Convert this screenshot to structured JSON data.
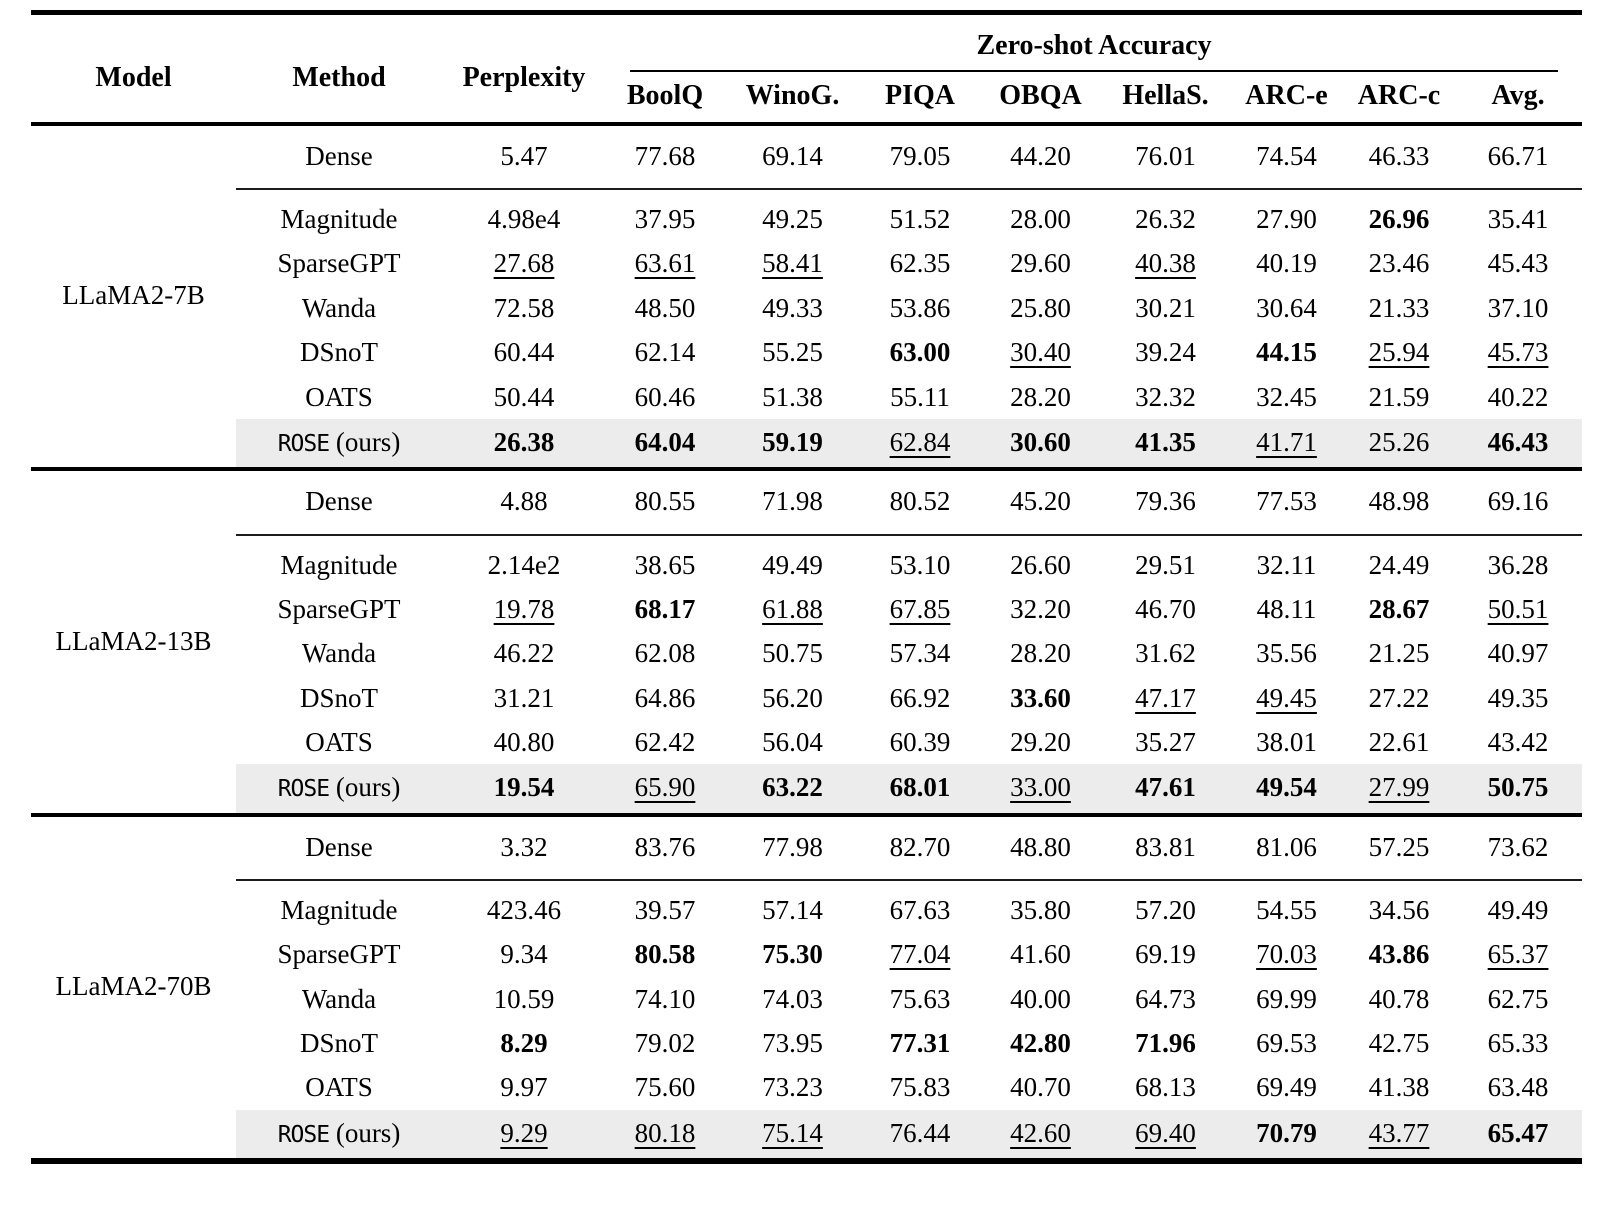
{
  "colors": {
    "highlight_row": "#ececec",
    "text": "#000000",
    "background": "#ffffff"
  },
  "table": {
    "header": {
      "model": "Model",
      "method": "Method",
      "perplexity": "Perplexity",
      "group": "Zero-shot Accuracy",
      "subcolumns": [
        "BoolQ",
        "WinoG.",
        "PIQA",
        "OBQA",
        "HellaS.",
        "ARC-e",
        "ARC-c",
        "Avg."
      ]
    },
    "blocks": [
      {
        "model": "LLaMA2-7B",
        "rows": [
          {
            "method": "Dense",
            "cells": [
              [
                "5.47",
                ""
              ],
              [
                "77.68",
                ""
              ],
              [
                "69.14",
                ""
              ],
              [
                "79.05",
                ""
              ],
              [
                "44.20",
                ""
              ],
              [
                "76.01",
                ""
              ],
              [
                "74.54",
                ""
              ],
              [
                "46.33",
                ""
              ],
              [
                "66.71",
                ""
              ]
            ]
          },
          {
            "method": "Magnitude",
            "cells": [
              [
                "4.98e4",
                ""
              ],
              [
                "37.95",
                ""
              ],
              [
                "49.25",
                ""
              ],
              [
                "51.52",
                ""
              ],
              [
                "28.00",
                ""
              ],
              [
                "26.32",
                ""
              ],
              [
                "27.90",
                ""
              ],
              [
                "26.96",
                "b"
              ],
              [
                "35.41",
                ""
              ]
            ]
          },
          {
            "method": "SparseGPT",
            "cells": [
              [
                "27.68",
                "u"
              ],
              [
                "63.61",
                "u"
              ],
              [
                "58.41",
                "u"
              ],
              [
                "62.35",
                ""
              ],
              [
                "29.60",
                ""
              ],
              [
                "40.38",
                "u"
              ],
              [
                "40.19",
                ""
              ],
              [
                "23.46",
                ""
              ],
              [
                "45.43",
                ""
              ]
            ]
          },
          {
            "method": "Wanda",
            "cells": [
              [
                "72.58",
                ""
              ],
              [
                "48.50",
                ""
              ],
              [
                "49.33",
                ""
              ],
              [
                "53.86",
                ""
              ],
              [
                "25.80",
                ""
              ],
              [
                "30.21",
                ""
              ],
              [
                "30.64",
                ""
              ],
              [
                "21.33",
                ""
              ],
              [
                "37.10",
                ""
              ]
            ]
          },
          {
            "method": "DSnoT",
            "cells": [
              [
                "60.44",
                ""
              ],
              [
                "62.14",
                ""
              ],
              [
                "55.25",
                ""
              ],
              [
                "63.00",
                "b"
              ],
              [
                "30.40",
                "u"
              ],
              [
                "39.24",
                ""
              ],
              [
                "44.15",
                "b"
              ],
              [
                "25.94",
                "u"
              ],
              [
                "45.73",
                "u"
              ]
            ]
          },
          {
            "method": "OATS",
            "cells": [
              [
                "50.44",
                ""
              ],
              [
                "60.46",
                ""
              ],
              [
                "51.38",
                ""
              ],
              [
                "55.11",
                ""
              ],
              [
                "28.20",
                ""
              ],
              [
                "32.32",
                ""
              ],
              [
                "32.45",
                ""
              ],
              [
                "21.59",
                ""
              ],
              [
                "40.22",
                ""
              ]
            ]
          },
          {
            "method": "ROSE",
            "method_suffix": "(ours)",
            "method_mono": true,
            "highlight": true,
            "cells": [
              [
                "26.38",
                "b"
              ],
              [
                "64.04",
                "b"
              ],
              [
                "59.19",
                "b"
              ],
              [
                "62.84",
                "u"
              ],
              [
                "30.60",
                "b"
              ],
              [
                "41.35",
                "b"
              ],
              [
                "41.71",
                "u"
              ],
              [
                "25.26",
                ""
              ],
              [
                "46.43",
                "b"
              ]
            ]
          }
        ]
      },
      {
        "model": "LLaMA2-13B",
        "rows": [
          {
            "method": "Dense",
            "cells": [
              [
                "4.88",
                ""
              ],
              [
                "80.55",
                ""
              ],
              [
                "71.98",
                ""
              ],
              [
                "80.52",
                ""
              ],
              [
                "45.20",
                ""
              ],
              [
                "79.36",
                ""
              ],
              [
                "77.53",
                ""
              ],
              [
                "48.98",
                ""
              ],
              [
                "69.16",
                ""
              ]
            ]
          },
          {
            "method": "Magnitude",
            "cells": [
              [
                "2.14e2",
                ""
              ],
              [
                "38.65",
                ""
              ],
              [
                "49.49",
                ""
              ],
              [
                "53.10",
                ""
              ],
              [
                "26.60",
                ""
              ],
              [
                "29.51",
                ""
              ],
              [
                "32.11",
                ""
              ],
              [
                "24.49",
                ""
              ],
              [
                "36.28",
                ""
              ]
            ]
          },
          {
            "method": "SparseGPT",
            "cells": [
              [
                "19.78",
                "u"
              ],
              [
                "68.17",
                "b"
              ],
              [
                "61.88",
                "u"
              ],
              [
                "67.85",
                "u"
              ],
              [
                "32.20",
                ""
              ],
              [
                "46.70",
                ""
              ],
              [
                "48.11",
                ""
              ],
              [
                "28.67",
                "b"
              ],
              [
                "50.51",
                "u"
              ]
            ]
          },
          {
            "method": "Wanda",
            "cells": [
              [
                "46.22",
                ""
              ],
              [
                "62.08",
                ""
              ],
              [
                "50.75",
                ""
              ],
              [
                "57.34",
                ""
              ],
              [
                "28.20",
                ""
              ],
              [
                "31.62",
                ""
              ],
              [
                "35.56",
                ""
              ],
              [
                "21.25",
                ""
              ],
              [
                "40.97",
                ""
              ]
            ]
          },
          {
            "method": "DSnoT",
            "cells": [
              [
                "31.21",
                ""
              ],
              [
                "64.86",
                ""
              ],
              [
                "56.20",
                ""
              ],
              [
                "66.92",
                ""
              ],
              [
                "33.60",
                "b"
              ],
              [
                "47.17",
                "u"
              ],
              [
                "49.45",
                "u"
              ],
              [
                "27.22",
                ""
              ],
              [
                "49.35",
                ""
              ]
            ]
          },
          {
            "method": "OATS",
            "cells": [
              [
                "40.80",
                ""
              ],
              [
                "62.42",
                ""
              ],
              [
                "56.04",
                ""
              ],
              [
                "60.39",
                ""
              ],
              [
                "29.20",
                ""
              ],
              [
                "35.27",
                ""
              ],
              [
                "38.01",
                ""
              ],
              [
                "22.61",
                ""
              ],
              [
                "43.42",
                ""
              ]
            ]
          },
          {
            "method": "ROSE",
            "method_suffix": "(ours)",
            "method_mono": true,
            "highlight": true,
            "cells": [
              [
                "19.54",
                "b"
              ],
              [
                "65.90",
                "u"
              ],
              [
                "63.22",
                "b"
              ],
              [
                "68.01",
                "b"
              ],
              [
                "33.00",
                "u"
              ],
              [
                "47.61",
                "b"
              ],
              [
                "49.54",
                "b"
              ],
              [
                "27.99",
                "u"
              ],
              [
                "50.75",
                "b"
              ]
            ]
          }
        ]
      },
      {
        "model": "LLaMA2-70B",
        "rows": [
          {
            "method": "Dense",
            "cells": [
              [
                "3.32",
                ""
              ],
              [
                "83.76",
                ""
              ],
              [
                "77.98",
                ""
              ],
              [
                "82.70",
                ""
              ],
              [
                "48.80",
                ""
              ],
              [
                "83.81",
                ""
              ],
              [
                "81.06",
                ""
              ],
              [
                "57.25",
                ""
              ],
              [
                "73.62",
                ""
              ]
            ]
          },
          {
            "method": "Magnitude",
            "cells": [
              [
                "423.46",
                ""
              ],
              [
                "39.57",
                ""
              ],
              [
                "57.14",
                ""
              ],
              [
                "67.63",
                ""
              ],
              [
                "35.80",
                ""
              ],
              [
                "57.20",
                ""
              ],
              [
                "54.55",
                ""
              ],
              [
                "34.56",
                ""
              ],
              [
                "49.49",
                ""
              ]
            ]
          },
          {
            "method": "SparseGPT",
            "cells": [
              [
                "9.34",
                ""
              ],
              [
                "80.58",
                "b"
              ],
              [
                "75.30",
                "b"
              ],
              [
                "77.04",
                "u"
              ],
              [
                "41.60",
                ""
              ],
              [
                "69.19",
                ""
              ],
              [
                "70.03",
                "u"
              ],
              [
                "43.86",
                "b"
              ],
              [
                "65.37",
                "u"
              ]
            ]
          },
          {
            "method": "Wanda",
            "cells": [
              [
                "10.59",
                ""
              ],
              [
                "74.10",
                ""
              ],
              [
                "74.03",
                ""
              ],
              [
                "75.63",
                ""
              ],
              [
                "40.00",
                ""
              ],
              [
                "64.73",
                ""
              ],
              [
                "69.99",
                ""
              ],
              [
                "40.78",
                ""
              ],
              [
                "62.75",
                ""
              ]
            ]
          },
          {
            "method": "DSnoT",
            "cells": [
              [
                "8.29",
                "b"
              ],
              [
                "79.02",
                ""
              ],
              [
                "73.95",
                ""
              ],
              [
                "77.31",
                "b"
              ],
              [
                "42.80",
                "b"
              ],
              [
                "71.96",
                "b"
              ],
              [
                "69.53",
                ""
              ],
              [
                "42.75",
                ""
              ],
              [
                "65.33",
                ""
              ]
            ]
          },
          {
            "method": "OATS",
            "cells": [
              [
                "9.97",
                ""
              ],
              [
                "75.60",
                ""
              ],
              [
                "73.23",
                ""
              ],
              [
                "75.83",
                ""
              ],
              [
                "40.70",
                ""
              ],
              [
                "68.13",
                ""
              ],
              [
                "69.49",
                ""
              ],
              [
                "41.38",
                ""
              ],
              [
                "63.48",
                ""
              ]
            ]
          },
          {
            "method": "ROSE",
            "method_suffix": "(ours)",
            "method_mono": true,
            "highlight": true,
            "cells": [
              [
                "9.29",
                "u"
              ],
              [
                "80.18",
                "u"
              ],
              [
                "75.14",
                "u"
              ],
              [
                "76.44",
                ""
              ],
              [
                "42.60",
                "u"
              ],
              [
                "69.40",
                "u"
              ],
              [
                "70.79",
                "b"
              ],
              [
                "43.77",
                "u"
              ],
              [
                "65.47",
                "b"
              ]
            ]
          }
        ]
      }
    ]
  }
}
